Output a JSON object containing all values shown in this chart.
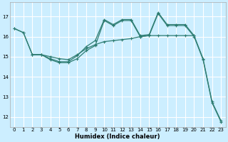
{
  "xlabel": "Humidex (Indice chaleur)",
  "bg_color": "#cceeff",
  "grid_color": "#ffffff",
  "line_color": "#2e7d72",
  "xlim": [
    -0.5,
    23.5
  ],
  "ylim": [
    11.5,
    17.7
  ],
  "yticks": [
    12,
    13,
    14,
    15,
    16,
    17
  ],
  "xticks": [
    0,
    1,
    2,
    3,
    4,
    5,
    6,
    7,
    8,
    9,
    10,
    11,
    12,
    13,
    14,
    15,
    16,
    17,
    18,
    19,
    20,
    21,
    22,
    23
  ],
  "line1_x": [
    0,
    1,
    2,
    3,
    4,
    5,
    6,
    7,
    8,
    9,
    10,
    11,
    12,
    13,
    14,
    15,
    16,
    17,
    18,
    19,
    20
  ],
  "line1_y": [
    16.4,
    16.2,
    15.1,
    15.1,
    15.0,
    14.9,
    14.85,
    15.1,
    15.4,
    15.6,
    15.75,
    15.8,
    15.85,
    15.9,
    16.0,
    16.05,
    16.05,
    16.05,
    16.05,
    16.05,
    16.05
  ],
  "line2_x": [
    0,
    1,
    2,
    3,
    4,
    5,
    6,
    7,
    8,
    9,
    10,
    11,
    12,
    13,
    14,
    15,
    16,
    17,
    18,
    19,
    20,
    21,
    22,
    23
  ],
  "line2_y": [
    16.4,
    16.2,
    15.1,
    15.1,
    14.9,
    14.75,
    14.75,
    15.05,
    15.5,
    15.8,
    16.85,
    16.6,
    16.85,
    16.85,
    16.05,
    16.1,
    17.2,
    16.6,
    16.6,
    16.6,
    16.05,
    14.9,
    12.75,
    11.8
  ],
  "line3_x": [
    2,
    3,
    4,
    5,
    6,
    7,
    8,
    9,
    10,
    11,
    12,
    13,
    14,
    15,
    16,
    17,
    18,
    19,
    20,
    21,
    22,
    23
  ],
  "line3_y": [
    15.1,
    15.1,
    14.85,
    14.7,
    14.7,
    14.9,
    15.3,
    15.55,
    16.8,
    16.55,
    16.8,
    16.8,
    16.0,
    16.05,
    17.15,
    16.55,
    16.55,
    16.55,
    16.0,
    14.85,
    12.7,
    11.75
  ]
}
